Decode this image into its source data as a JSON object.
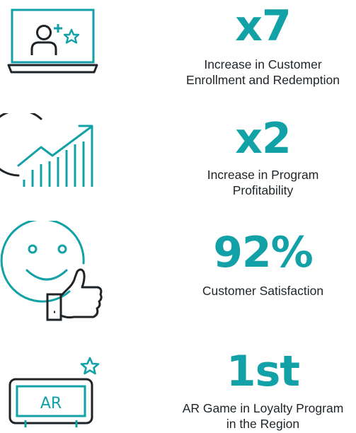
{
  "stats": [
    {
      "icon": "laptop-user-add-icon",
      "value": "x7",
      "lines": [
        "Increase in Customer",
        "Enrollment and Redemption"
      ]
    },
    {
      "icon": "growth-chart-icon",
      "value": "x2",
      "lines": [
        "Increase in Program",
        "Profitability"
      ]
    },
    {
      "icon": "smiley-thumbs-up-icon",
      "value": "92%",
      "lines": [
        "Customer Satisfaction"
      ]
    },
    {
      "icon": "ar-phone-star-icon",
      "value": "1st",
      "ar_label": "AR",
      "lines": [
        "AR Game in Loyalty Program",
        "in the Region"
      ]
    }
  ],
  "colors": {
    "accent": "#12a1a6",
    "dark": "#1f2428"
  }
}
